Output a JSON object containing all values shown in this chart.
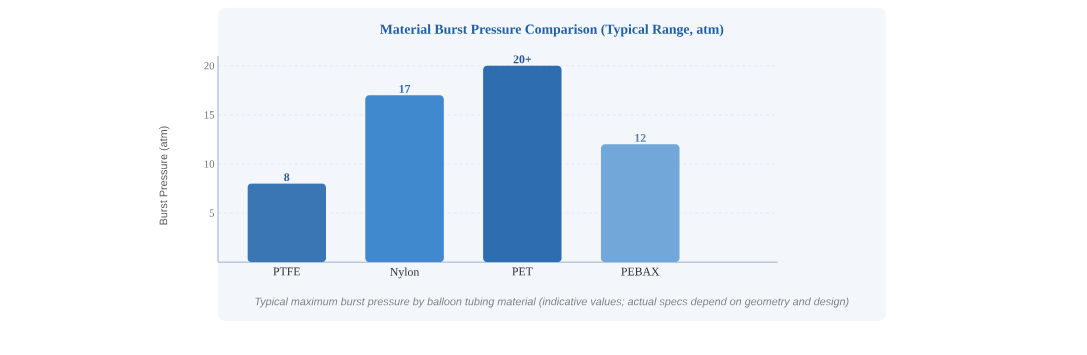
{
  "chart_data": {
    "type": "bar",
    "title": "Material Burst Pressure Comparison (Typical Range, atm)",
    "ylabel": "Burst Pressure (atm)",
    "categories": [
      "PTFE",
      "Nylon",
      "PET",
      "PEBAX"
    ],
    "values": [
      8,
      17,
      20,
      12
    ],
    "colors": [
      "#3a75b4",
      "#4189cf",
      "#2d6db0",
      "#72a7d9"
    ],
    "value_labels": [
      "8",
      "17",
      "20+",
      "12"
    ],
    "ylim": [
      0,
      21
    ],
    "yticks": [
      5,
      10,
      15,
      20
    ],
    "grid": "y",
    "annotations": [
      "Typical maximum burst pressure by balloon tubing material (indicative values; actual specs depend on geometry and design)"
    ]
  }
}
